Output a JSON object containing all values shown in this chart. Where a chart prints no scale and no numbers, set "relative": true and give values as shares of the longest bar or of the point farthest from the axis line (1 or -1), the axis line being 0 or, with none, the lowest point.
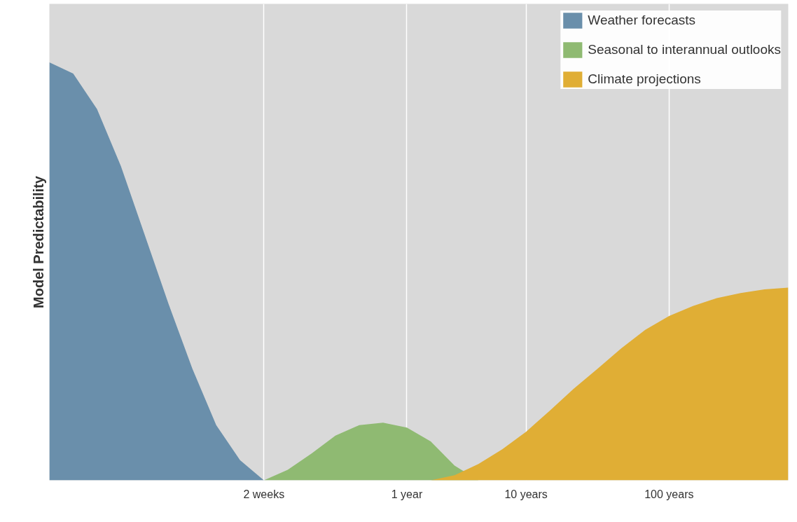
{
  "chart_data": {
    "type": "area",
    "relative": true,
    "ylabel": "Model Predictability",
    "categories": [
      null,
      null,
      null,
      null,
      null,
      null,
      null,
      null,
      null,
      "2 weeks",
      null,
      null,
      null,
      null,
      null,
      "1 year",
      null,
      null,
      null,
      null,
      "10 years",
      null,
      null,
      null,
      null,
      null,
      "100 years",
      null,
      null,
      null,
      null,
      null
    ],
    "grid": "x",
    "legend": "top right",
    "tick_labels": "x",
    "series": [
      {
        "name": "Weather forecasts",
        "color": "#6a8fab",
        "values": [
          1.0,
          0.973,
          0.888,
          0.752,
          0.587,
          0.422,
          0.267,
          0.132,
          0.048,
          0,
          null,
          null,
          null,
          null,
          null,
          null,
          null,
          null,
          null,
          null,
          null,
          null,
          null,
          null,
          null,
          null,
          null,
          null,
          null,
          null,
          null,
          null
        ]
      },
      {
        "name": "Seasonal to interannual outlooks",
        "color": "#8fba72",
        "values": [
          null,
          null,
          null,
          null,
          null,
          null,
          null,
          null,
          null,
          0,
          0.025,
          0.064,
          0.107,
          0.132,
          0.138,
          0.126,
          0.093,
          0.035,
          0,
          null,
          null,
          null,
          null,
          null,
          null,
          null,
          null,
          null,
          null,
          null,
          null,
          null
        ]
      },
      {
        "name": "Climate projections",
        "color": "#e0ae35",
        "values": [
          null,
          null,
          null,
          null,
          null,
          null,
          null,
          null,
          null,
          null,
          null,
          null,
          null,
          null,
          null,
          null,
          0,
          0.012,
          0.039,
          0.074,
          0.116,
          0.167,
          0.219,
          0.267,
          0.316,
          0.36,
          0.393,
          0.417,
          0.436,
          0.448,
          0.457,
          0.461
        ]
      }
    ]
  }
}
